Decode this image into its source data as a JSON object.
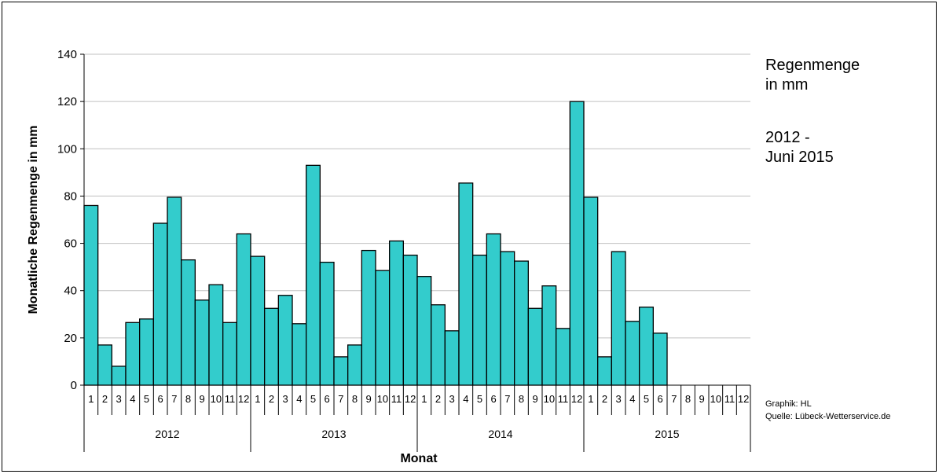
{
  "chart_data": {
    "type": "bar",
    "xlabel": "Monat",
    "ylabel": "Monatliche Regenmenge in mm",
    "ylim": [
      0,
      140
    ],
    "yticks": [
      "0",
      "20",
      "40",
      "60",
      "80",
      "100",
      "120",
      "140"
    ],
    "month_labels": [
      "1",
      "2",
      "3",
      "4",
      "5",
      "6",
      "7",
      "8",
      "9",
      "10",
      "11",
      "12"
    ],
    "years": [
      {
        "year": "2012",
        "values": [
          76,
          17,
          8,
          26.5,
          28,
          68.5,
          79.5,
          53,
          36,
          42.5,
          26.5,
          64
        ]
      },
      {
        "year": "2013",
        "values": [
          54.5,
          32.5,
          38,
          26,
          93,
          52,
          12,
          17,
          57,
          48.5,
          61,
          55
        ]
      },
      {
        "year": "2014",
        "values": [
          46,
          34,
          23,
          85.5,
          55,
          64,
          56.5,
          52.5,
          32.5,
          42,
          24,
          120
        ]
      },
      {
        "year": "2015",
        "values": [
          79.5,
          12,
          56.5,
          27,
          33,
          22,
          null,
          null,
          null,
          null,
          null,
          null
        ]
      }
    ],
    "bar_color": "#33CCCC",
    "grid": true,
    "legend": "none"
  },
  "side_text": {
    "title_line1": "Regenmenge",
    "title_line2": "in mm",
    "period_line1": "2012 -",
    "period_line2": "Juni 2015",
    "credit_line1": "Graphik: HL",
    "credit_line2": "Quelle: Lübeck-Wetterservice.de"
  }
}
